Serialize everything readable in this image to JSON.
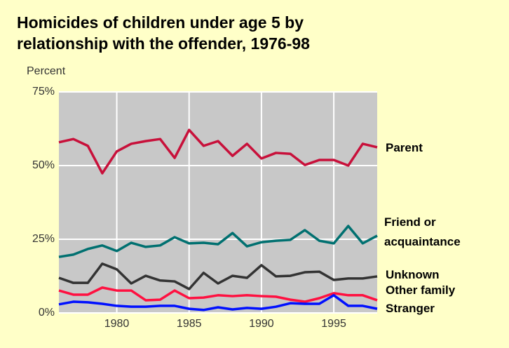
{
  "chart_data": {
    "type": "line",
    "title": [
      "Homicides of children under age 5 by",
      "relationship with the offender, 1976-98"
    ],
    "y_label": "Percent",
    "x": [
      1976,
      1977,
      1978,
      1979,
      1980,
      1981,
      1982,
      1983,
      1984,
      1985,
      1986,
      1987,
      1988,
      1989,
      1990,
      1991,
      1992,
      1993,
      1994,
      1995,
      1996,
      1997,
      1998
    ],
    "xlim": [
      1976,
      1998
    ],
    "xticks": [
      1980,
      1985,
      1990,
      1995
    ],
    "ylim": [
      0,
      75
    ],
    "yticks": [
      {
        "value": 0,
        "label": "0%"
      },
      {
        "value": 25,
        "label": "25%"
      },
      {
        "value": 50,
        "label": "50%"
      },
      {
        "value": 75,
        "label": "75%"
      }
    ],
    "grid": true,
    "series": [
      {
        "name": "Parent",
        "color": "#c8103a",
        "values": [
          57.9,
          59,
          56.7,
          47.4,
          54.8,
          57.4,
          58.3,
          59,
          52.6,
          62.1,
          56.7,
          58.3,
          53.3,
          57.4,
          52.4,
          54.3,
          54,
          50.2,
          51.9,
          51.9,
          50,
          57.4,
          56.2
        ]
      },
      {
        "name": "Friend or acquaintance",
        "color": "#007070",
        "values": [
          19,
          19.8,
          21.7,
          22.9,
          21,
          23.8,
          22.4,
          22.9,
          25.7,
          23.6,
          23.8,
          23.3,
          27.1,
          22.6,
          24,
          24.5,
          24.8,
          28.1,
          24.5,
          23.6,
          29.5,
          23.6,
          26.2
        ]
      },
      {
        "name": "Unknown",
        "color": "#333333",
        "values": [
          11.9,
          10.2,
          10.2,
          16.7,
          14.8,
          10,
          12.6,
          11,
          10.7,
          8.1,
          13.6,
          10,
          12.6,
          11.9,
          16.2,
          12.4,
          12.6,
          13.8,
          14,
          11.2,
          11.7,
          11.7,
          12.4
        ]
      },
      {
        "name": "Other family",
        "color": "#ff1040",
        "values": [
          7.6,
          6.2,
          6.2,
          8.6,
          7.6,
          7.6,
          4.3,
          4.5,
          7.6,
          5,
          5.2,
          6,
          5.7,
          6,
          5.7,
          5.5,
          4.5,
          3.8,
          5,
          6.7,
          6,
          6,
          4.3
        ]
      },
      {
        "name": "Stranger",
        "color": "#0010ff",
        "values": [
          2.9,
          3.8,
          3.6,
          3.1,
          2.4,
          2.1,
          2.1,
          2.4,
          2.4,
          1.4,
          1,
          1.9,
          1.2,
          1.7,
          1.4,
          2.1,
          3.3,
          3.1,
          3.1,
          6,
          2.4,
          2.4,
          1.4
        ]
      }
    ]
  }
}
